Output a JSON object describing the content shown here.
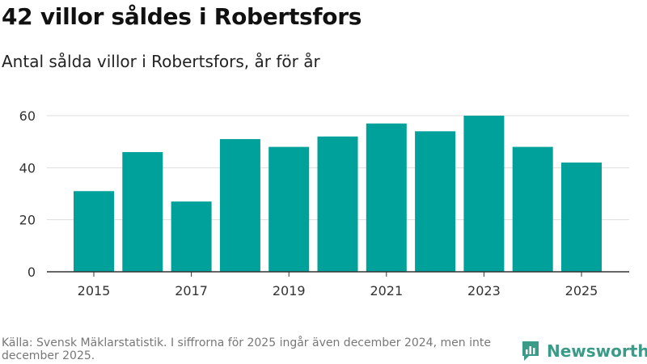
{
  "title": "42 villor såldes i Robertsfors",
  "subtitle": "Antal sålda villor i Robertsfors, år för år",
  "footer": {
    "source": "Källa: Svensk Mäklarstatistik. I siffrorna för 2025 ingår även december 2024, men inte december 2025."
  },
  "logo": {
    "text": "Newsworthy",
    "icon": "bar-chart-logo-icon"
  },
  "colors": {
    "bar": "#00a19a",
    "grid": "#dddddd",
    "axis": "#333333",
    "tick_text": "#333333",
    "logo": "#3a9b88"
  },
  "chart_data": {
    "type": "bar",
    "title": "42 villor såldes i Robertsfors",
    "subtitle": "Antal sålda villor i Robertsfors, år för år",
    "categories": [
      "2015",
      "2016",
      "2017",
      "2018",
      "2019",
      "2020",
      "2021",
      "2022",
      "2023",
      "2024",
      "2025"
    ],
    "values": [
      31,
      46,
      27,
      51,
      48,
      52,
      57,
      54,
      60,
      48,
      42
    ],
    "x_tick_labels": [
      "2015",
      "2017",
      "2019",
      "2021",
      "2023",
      "2025"
    ],
    "y_ticks": [
      0,
      20,
      40,
      60
    ],
    "ylim": [
      0,
      60
    ],
    "xlabel": "",
    "ylabel": "",
    "grid": true,
    "legend": "none"
  }
}
